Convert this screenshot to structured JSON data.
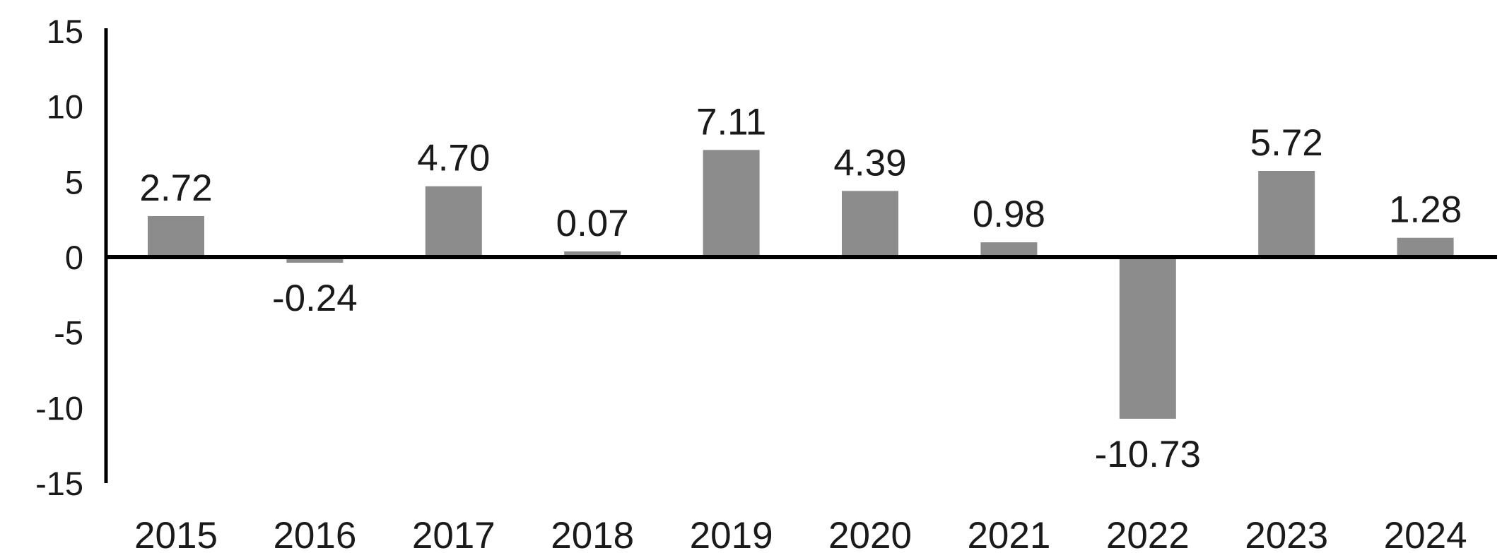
{
  "chart_data": {
    "type": "bar",
    "title": "",
    "xlabel": "",
    "ylabel": "",
    "categories": [
      "2015",
      "2016",
      "2017",
      "2018",
      "2019",
      "2020",
      "2021",
      "2022",
      "2023",
      "2024"
    ],
    "values": [
      2.72,
      -0.24,
      4.7,
      0.07,
      7.11,
      4.39,
      0.98,
      -10.73,
      5.72,
      1.28
    ],
    "data_labels": [
      "2.72",
      "-0.24",
      "4.70",
      "0.07",
      "7.11",
      "4.39",
      "0.98",
      "-10.73",
      "5.72",
      "1.28"
    ],
    "yticks": [
      15,
      10,
      5,
      0,
      -5,
      -10,
      -15
    ],
    "ytick_labels": [
      "15",
      "10",
      "5",
      "0",
      "-5",
      "-10",
      "-15"
    ],
    "ylim": [
      -15,
      15
    ],
    "grid": false,
    "legend": "none",
    "colors": {
      "bar": "#8c8c8c",
      "axis": "#000000",
      "text": "#1a1a1a"
    }
  }
}
